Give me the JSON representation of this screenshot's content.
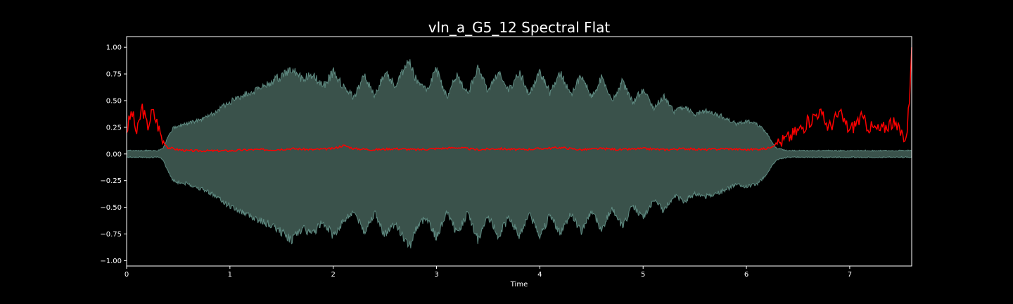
{
  "chart_data": {
    "type": "line",
    "title": "vln_a_G5_12 Spectral Flat",
    "xlabel": "Time",
    "ylabel": "",
    "xlim": [
      0,
      7.6
    ],
    "ylim": [
      -1.05,
      1.1
    ],
    "x_ticks": [
      0,
      1,
      2,
      3,
      4,
      5,
      6,
      7
    ],
    "x_tick_labels": [
      "0",
      "1",
      "2",
      "3",
      "4",
      "5",
      "6",
      "7"
    ],
    "y_ticks": [
      1.0,
      0.75,
      0.5,
      0.25,
      0.0,
      -0.25,
      -0.5,
      -0.75,
      -1.0
    ],
    "y_tick_labels": [
      "1.00",
      "0.75",
      "0.50",
      "0.25",
      "0.00",
      "−0.25",
      "−0.50",
      "−0.75",
      "−1.00"
    ],
    "grid": false,
    "colors": {
      "background": "#000000",
      "waveform_fill": "#3a524b",
      "waveform_edge": "#5e8a81",
      "flatness_line": "#ff0000",
      "axes": "#ffffff"
    },
    "series": [
      {
        "kind": "waveform-envelope",
        "x": [
          0,
          0.1,
          0.2,
          0.3,
          0.35,
          0.4,
          0.45,
          0.5,
          0.6,
          0.8,
          1.0,
          1.2,
          1.4,
          1.5,
          1.6,
          1.7,
          1.8,
          1.9,
          2.0,
          2.1,
          2.2,
          2.3,
          2.4,
          2.5,
          2.6,
          2.7,
          2.75,
          2.8,
          2.9,
          3.0,
          3.1,
          3.2,
          3.3,
          3.4,
          3.5,
          3.6,
          3.7,
          3.8,
          3.9,
          4.0,
          4.1,
          4.2,
          4.3,
          4.4,
          4.5,
          4.6,
          4.7,
          4.8,
          4.9,
          5.0,
          5.1,
          5.2,
          5.3,
          5.4,
          5.5,
          5.6,
          5.7,
          5.8,
          5.9,
          6.0,
          6.1,
          6.2,
          6.25,
          6.3,
          6.4,
          6.6,
          6.8,
          7.0,
          7.2,
          7.4,
          7.6
        ],
        "values": [
          0.04,
          0.04,
          0.04,
          0.04,
          0.06,
          0.18,
          0.28,
          0.3,
          0.32,
          0.4,
          0.55,
          0.65,
          0.75,
          0.82,
          0.9,
          0.78,
          0.84,
          0.7,
          0.86,
          0.7,
          0.6,
          0.82,
          0.62,
          0.85,
          0.72,
          0.92,
          0.95,
          0.78,
          0.66,
          0.88,
          0.6,
          0.84,
          0.62,
          0.9,
          0.66,
          0.86,
          0.66,
          0.86,
          0.62,
          0.86,
          0.64,
          0.84,
          0.62,
          0.82,
          0.6,
          0.8,
          0.56,
          0.76,
          0.54,
          0.68,
          0.48,
          0.6,
          0.44,
          0.5,
          0.42,
          0.45,
          0.42,
          0.38,
          0.32,
          0.35,
          0.32,
          0.22,
          0.12,
          0.06,
          0.04,
          0.04,
          0.04,
          0.04,
          0.04,
          0.04,
          0.04
        ]
      },
      {
        "kind": "spectral-flatness",
        "x": [
          0,
          0.05,
          0.1,
          0.15,
          0.2,
          0.25,
          0.3,
          0.35,
          0.4,
          0.5,
          0.6,
          0.8,
          1.0,
          1.2,
          1.4,
          1.6,
          1.8,
          2.0,
          2.1,
          2.2,
          2.4,
          2.6,
          2.8,
          3.0,
          3.2,
          3.4,
          3.6,
          3.8,
          4.0,
          4.2,
          4.4,
          4.6,
          4.8,
          5.0,
          5.2,
          5.4,
          5.6,
          5.8,
          6.0,
          6.2,
          6.3,
          6.4,
          6.5,
          6.6,
          6.7,
          6.8,
          6.9,
          7.0,
          7.1,
          7.2,
          7.3,
          7.4,
          7.5,
          7.55,
          7.58,
          7.6
        ],
        "values": [
          0.22,
          0.4,
          0.18,
          0.45,
          0.25,
          0.4,
          0.28,
          0.12,
          0.06,
          0.04,
          0.03,
          0.03,
          0.03,
          0.04,
          0.04,
          0.05,
          0.04,
          0.05,
          0.08,
          0.05,
          0.04,
          0.05,
          0.04,
          0.05,
          0.06,
          0.04,
          0.05,
          0.04,
          0.05,
          0.06,
          0.04,
          0.05,
          0.04,
          0.05,
          0.04,
          0.05,
          0.04,
          0.05,
          0.04,
          0.05,
          0.1,
          0.15,
          0.22,
          0.3,
          0.4,
          0.25,
          0.38,
          0.22,
          0.34,
          0.25,
          0.22,
          0.3,
          0.2,
          0.15,
          0.55,
          1.0
        ]
      }
    ]
  }
}
